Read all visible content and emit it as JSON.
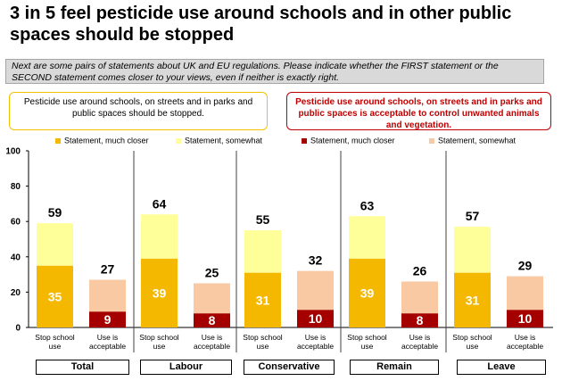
{
  "title": "3 in 5 feel pesticide use around schools and in other public spaces should be stopped",
  "question": "Next are some pairs of statements about UK and EU regulations. Please indicate whether the FIRST statement or the SECOND statement comes closer to your views, even if neither is exactly right.",
  "statement_first": "Pesticide use around schools, on streets and in parks and public spaces should be stopped.",
  "statement_second": "Pesticide use around schools, on streets and in parks and public spaces is acceptable to control unwanted animals and vegetation.",
  "legend": [
    {
      "label": "Statement, much closer",
      "color": "#f5b800"
    },
    {
      "label": "Statement, somewhat",
      "color": "#ffff99"
    },
    {
      "label": "Statement, much closer",
      "color": "#a50000"
    },
    {
      "label": "Statement, somewhat",
      "color": "#f8c9a2"
    }
  ],
  "colors": {
    "stop_much": "#f5b800",
    "stop_somewhat": "#ffff99",
    "acc_much": "#a50000",
    "acc_somewhat": "#f8c9a2"
  },
  "chart_data": {
    "type": "bar",
    "stacked": true,
    "ylim": [
      0,
      100
    ],
    "yticks": [
      0,
      20,
      40,
      60,
      80,
      100
    ],
    "grid": false,
    "legend_position": "top",
    "bar_categories": [
      "Stop school use",
      "Use is acceptable"
    ],
    "groups": [
      "Total",
      "Labour",
      "Conservative",
      "Remain",
      "Leave"
    ],
    "series": [
      {
        "name": "Statement, much closer",
        "bar": "Stop school use",
        "values": [
          35,
          39,
          31,
          39,
          31
        ]
      },
      {
        "name": "Statement, somewhat",
        "bar": "Stop school use",
        "values": [
          24,
          25,
          24,
          24,
          26
        ]
      },
      {
        "name": "Statement, much closer",
        "bar": "Use is acceptable",
        "values": [
          9,
          8,
          10,
          8,
          10
        ]
      },
      {
        "name": "Statement, somewhat",
        "bar": "Use is acceptable",
        "values": [
          18,
          17,
          22,
          18,
          19
        ]
      }
    ],
    "totals": {
      "Stop school use": [
        59,
        64,
        55,
        63,
        57
      ],
      "Use is acceptable": [
        27,
        25,
        32,
        26,
        29
      ]
    }
  }
}
